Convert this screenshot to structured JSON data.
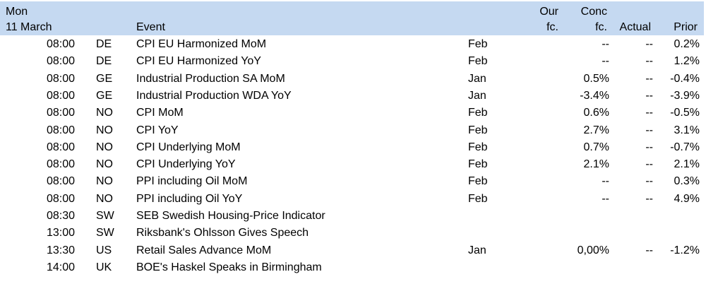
{
  "header": {
    "day": "Mon",
    "date": "11 March",
    "event": "Event",
    "our_fc_line1": "Our",
    "our_fc_line2": "fc.",
    "conc_fc_line1": "Conc",
    "conc_fc_line2": "fc.",
    "actual": "Actual",
    "prior": "Prior"
  },
  "rows": [
    {
      "time": "08:00",
      "country": "DE",
      "event": "CPI EU Harmonized MoM",
      "period": "Feb",
      "our_fc": "",
      "conc_fc": "--",
      "actual": "--",
      "prior": "0.2%"
    },
    {
      "time": "08:00",
      "country": "DE",
      "event": "CPI EU Harmonized YoY",
      "period": "Feb",
      "our_fc": "",
      "conc_fc": "--",
      "actual": "--",
      "prior": "1.2%"
    },
    {
      "time": "08:00",
      "country": "GE",
      "event": "Industrial Production SA MoM",
      "period": "Jan",
      "our_fc": "",
      "conc_fc": "0.5%",
      "actual": "--",
      "prior": "-0.4%"
    },
    {
      "time": "08:00",
      "country": "GE",
      "event": "Industrial Production WDA YoY",
      "period": "Jan",
      "our_fc": "",
      "conc_fc": "-3.4%",
      "actual": "--",
      "prior": "-3.9%"
    },
    {
      "time": "08:00",
      "country": "NO",
      "event": "CPI MoM",
      "period": "Feb",
      "our_fc": "",
      "conc_fc": "0.6%",
      "actual": "--",
      "prior": "-0.5%"
    },
    {
      "time": "08:00",
      "country": "NO",
      "event": "CPI YoY",
      "period": "Feb",
      "our_fc": "",
      "conc_fc": "2.7%",
      "actual": "--",
      "prior": "3.1%"
    },
    {
      "time": "08:00",
      "country": "NO",
      "event": "CPI Underlying MoM",
      "period": "Feb",
      "our_fc": "",
      "conc_fc": "0.7%",
      "actual": "--",
      "prior": "-0.7%"
    },
    {
      "time": "08:00",
      "country": "NO",
      "event": "CPI Underlying YoY",
      "period": "Feb",
      "our_fc": "",
      "conc_fc": "2.1%",
      "actual": "--",
      "prior": "2.1%"
    },
    {
      "time": "08:00",
      "country": "NO",
      "event": "PPI including Oil MoM",
      "period": "Feb",
      "our_fc": "",
      "conc_fc": "--",
      "actual": "--",
      "prior": "0.3%"
    },
    {
      "time": "08:00",
      "country": "NO",
      "event": "PPI including Oil YoY",
      "period": "Feb",
      "our_fc": "",
      "conc_fc": "--",
      "actual": "--",
      "prior": "4.9%"
    },
    {
      "time": "08:30",
      "country": "SW",
      "event": "SEB Swedish Housing-Price Indicator",
      "period": "",
      "our_fc": "",
      "conc_fc": "",
      "actual": "",
      "prior": ""
    },
    {
      "time": "13:00",
      "country": "SW",
      "event": "Riksbank's Ohlsson Gives Speech",
      "period": "",
      "our_fc": "",
      "conc_fc": "",
      "actual": "",
      "prior": ""
    },
    {
      "time": "13:30",
      "country": "US",
      "event": "Retail Sales Advance MoM",
      "period": "Jan",
      "our_fc": "",
      "conc_fc": "0,00%",
      "actual": "--",
      "prior": "-1.2%"
    },
    {
      "time": "14:00",
      "country": "UK",
      "event": "BOE's Haskel Speaks in Birmingham",
      "period": "",
      "our_fc": "",
      "conc_fc": "",
      "actual": "",
      "prior": ""
    }
  ]
}
